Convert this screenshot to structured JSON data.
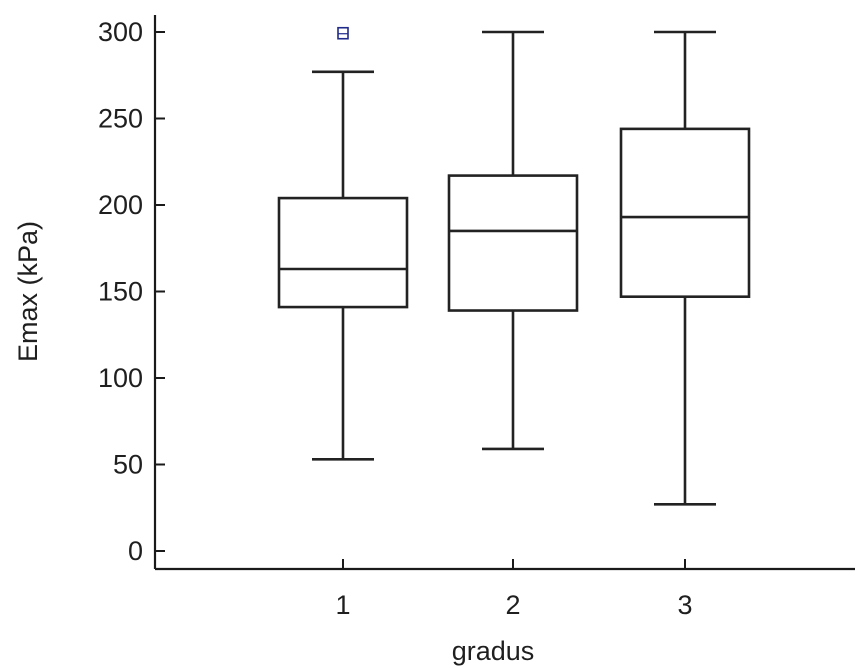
{
  "chart_data": {
    "type": "box",
    "xlabel": "gradus",
    "ylabel": "Emax (kPa)",
    "categories": [
      "1",
      "2",
      "3"
    ],
    "ylim": [
      0,
      300
    ],
    "yticks": [
      0,
      50,
      100,
      150,
      200,
      250,
      300
    ],
    "grid": false,
    "legend": "none",
    "boxes": [
      {
        "category": "1",
        "whisker_low": 53,
        "q1": 141,
        "median": 163,
        "q3": 204,
        "whisker_high": 277,
        "outliers": [
          299
        ]
      },
      {
        "category": "2",
        "whisker_low": 59,
        "q1": 139,
        "median": 185,
        "q3": 217,
        "whisker_high": 300,
        "outliers": []
      },
      {
        "category": "3",
        "whisker_low": 27,
        "q1": 147,
        "median": 193,
        "q3": 244,
        "whisker_high": 300,
        "outliers": []
      }
    ],
    "colors": {
      "box_stroke": "#222222",
      "outlier": "#1f2a8a"
    }
  }
}
